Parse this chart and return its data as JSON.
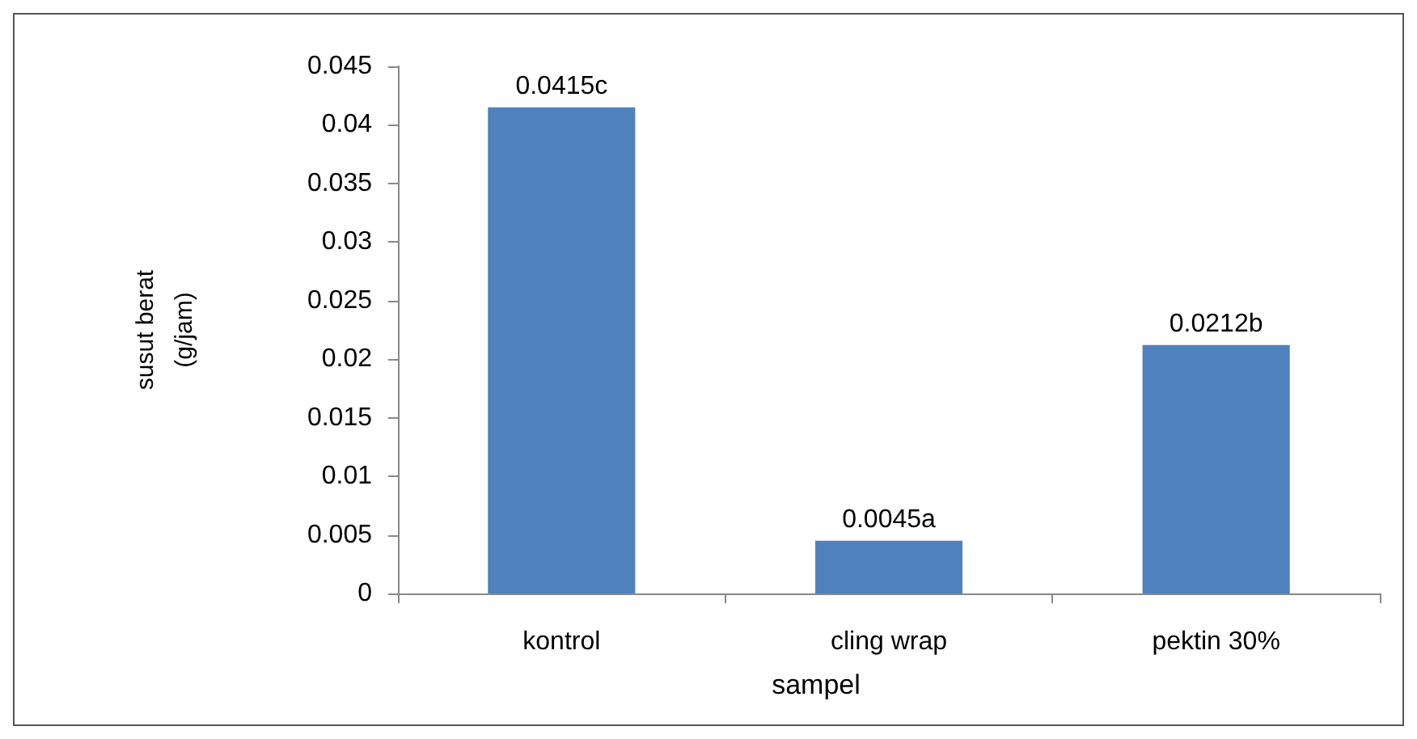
{
  "chart_data": {
    "type": "bar",
    "xlabel": "sampel",
    "ylabel": "susut berat\n(g/jam)",
    "categories": [
      "kontrol",
      "cling wrap",
      "pektin 30%"
    ],
    "values": [
      0.0415,
      0.0045,
      0.0212
    ],
    "value_labels": [
      "0.0415c",
      "0.0045a",
      "0.0212b"
    ],
    "color": "#4f81bd",
    "ylim": [
      0,
      0.045
    ],
    "yticks": [
      0,
      0.005,
      0.01,
      0.015,
      0.02,
      0.025,
      0.03,
      0.035,
      0.04,
      0.045
    ],
    "grid": false
  }
}
